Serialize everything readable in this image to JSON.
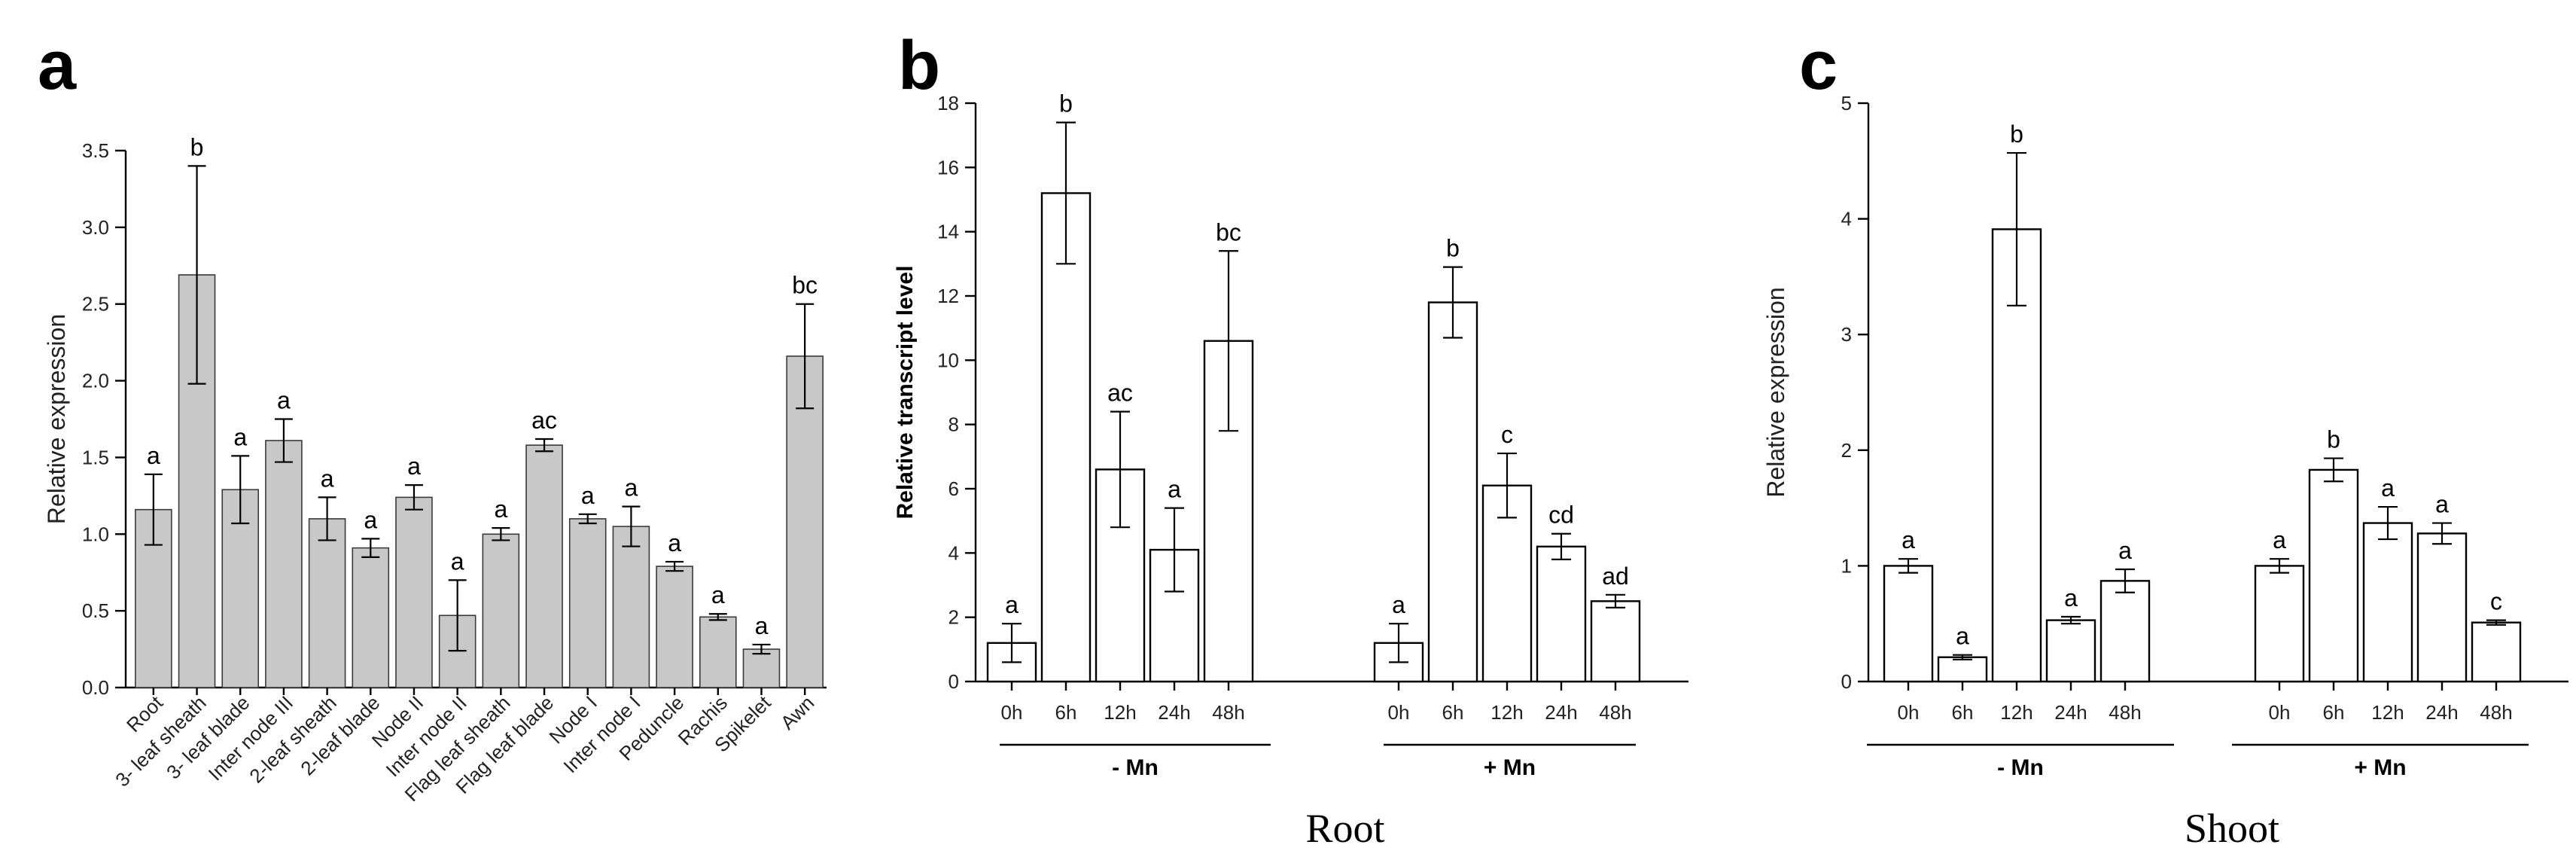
{
  "chart_data": [
    {
      "panel": "a",
      "type": "bar",
      "ylabel": "Relative expression",
      "ylim": [
        0,
        3.5
      ],
      "yticks": [
        "0.0",
        "0.5",
        "1.0",
        "1.5",
        "2.0",
        "2.5",
        "3.0",
        "3.5"
      ],
      "categories": [
        "Root",
        "3- leaf sheath",
        "3- leaf blade",
        "Inter node III",
        "2-leaf sheath",
        "2-leaf blade",
        "Node II",
        "Inter node II",
        "Flag leaf sheath",
        "Flag leaf blade",
        "Node I",
        "Inter node I",
        "Peduncle",
        "Rachis",
        "Spikelet",
        "Awn"
      ],
      "values": [
        1.16,
        2.69,
        1.29,
        1.61,
        1.1,
        0.91,
        1.24,
        0.47,
        1.0,
        1.58,
        1.1,
        1.05,
        0.79,
        0.46,
        0.25,
        2.16
      ],
      "errors": [
        0.23,
        0.71,
        0.22,
        0.14,
        0.14,
        0.06,
        0.08,
        0.23,
        0.04,
        0.04,
        0.03,
        0.13,
        0.03,
        0.02,
        0.03,
        0.34
      ],
      "labels": [
        "a",
        "b",
        "a",
        "a",
        "a",
        "a",
        "a",
        "a",
        "a",
        "ac",
        "a",
        "a",
        "a",
        "a",
        "a",
        "bc"
      ],
      "grid": false
    },
    {
      "panel": "b",
      "type": "bar",
      "ylabel": "Relative transcript level",
      "ylim": [
        0,
        18
      ],
      "yticks": [
        "0",
        "2",
        "4",
        "6",
        "8",
        "10",
        "12",
        "14",
        "16",
        "18"
      ],
      "groups": [
        "- Mn",
        "+ Mn"
      ],
      "categories": [
        "0h",
        "6h",
        "12h",
        "24h",
        "48h"
      ],
      "series": [
        {
          "group": "- Mn",
          "values": [
            1.2,
            15.2,
            6.6,
            4.1,
            10.6
          ],
          "errors": [
            0.6,
            2.2,
            1.8,
            1.3,
            2.8
          ],
          "labels": [
            "a",
            "b",
            "ac",
            "a",
            "bc"
          ]
        },
        {
          "group": "+ Mn",
          "values": [
            1.2,
            11.8,
            6.1,
            4.2,
            2.5
          ],
          "errors": [
            0.6,
            1.1,
            1.0,
            0.4,
            0.2
          ],
          "labels": [
            "a",
            "b",
            "c",
            "cd",
            "ad"
          ]
        }
      ],
      "caption": "Root",
      "grid": false
    },
    {
      "panel": "c",
      "type": "bar",
      "ylabel": "Relative expression",
      "ylim": [
        0,
        5
      ],
      "yticks": [
        "0",
        "1",
        "2",
        "3",
        "4",
        "5"
      ],
      "groups": [
        "- Mn",
        "+ Mn"
      ],
      "categories": [
        "0h",
        "6h",
        "12h",
        "24h",
        "48h"
      ],
      "series": [
        {
          "group": "- Mn",
          "values": [
            1.0,
            0.21,
            3.91,
            0.53,
            0.87
          ],
          "errors": [
            0.06,
            0.02,
            0.66,
            0.03,
            0.1
          ],
          "labels": [
            "a",
            "a",
            "b",
            "a",
            "a"
          ]
        },
        {
          "group": "+ Mn",
          "values": [
            1.0,
            1.83,
            1.37,
            1.28,
            0.51
          ],
          "errors": [
            0.06,
            0.1,
            0.14,
            0.09,
            0.02
          ],
          "labels": [
            "a",
            "b",
            "a",
            "a",
            "c"
          ]
        }
      ],
      "caption": "Shoot",
      "grid": false
    }
  ]
}
